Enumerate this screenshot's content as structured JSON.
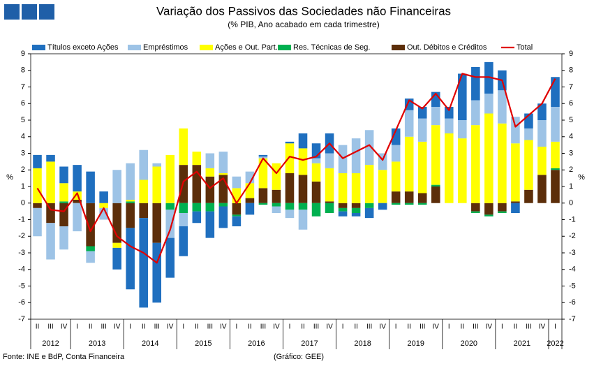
{
  "chart_data": {
    "type": "bar",
    "stacked": true,
    "title": "Variação dos Passivos das Sociedades não Financeiras",
    "subtitle": "(% PIB, Ano acabado em cada trimestre)",
    "ylabel": "%",
    "y2label": "%",
    "source": "Fonte: INE e BdP, Conta Financeira",
    "credit": "(Gráfico: GEE)",
    "categories": [
      "II",
      "III",
      "IV",
      "I",
      "II",
      "III",
      "IV",
      "I",
      "II",
      "III",
      "IV",
      "I",
      "II",
      "III",
      "IV",
      "I",
      "II",
      "III",
      "IV",
      "I",
      "II",
      "III",
      "IV",
      "I",
      "II",
      "III",
      "IV",
      "I",
      "II",
      "III",
      "IV",
      "I",
      "II",
      "III",
      "IV",
      "I",
      "II",
      "III",
      "IV",
      "I"
    ],
    "years": [
      "2012",
      "2013",
      "2014",
      "2015",
      "2016",
      "2017",
      "2018",
      "2019",
      "2020",
      "2021",
      "2022"
    ],
    "ylim": [
      -7,
      9
    ],
    "yticks": [
      -7,
      -6,
      -5,
      -4,
      -3,
      -2,
      -1,
      0,
      1,
      2,
      3,
      4,
      5,
      6,
      7,
      8,
      9
    ],
    "y2lim": [
      -7,
      9
    ],
    "y2ticks": [
      -7,
      -6,
      -5,
      -4,
      -3,
      -2,
      -1,
      0,
      1,
      2,
      3,
      4,
      5,
      6,
      7,
      8,
      9
    ],
    "grid": false,
    "legend": "top",
    "series": [
      {
        "name": "Títulos exceto Ações",
        "color": "#1f6fbf",
        "values": [
          0.8,
          0.4,
          1.0,
          1.6,
          1.9,
          0.7,
          -1.3,
          -3.7,
          -5.4,
          -3.6,
          -2.4,
          -1.8,
          -0.7,
          -1.6,
          -1.3,
          -0.6,
          -0.7,
          0.1,
          0,
          0.1,
          0.9,
          0.9,
          1.2,
          -0.3,
          -0.2,
          -0.6,
          -0.4,
          1.0,
          0.7,
          0.7,
          0.9,
          0.7,
          2.8,
          2.0,
          1.9,
          1.2,
          -0.6,
          0.9,
          1.0,
          1.8
        ]
      },
      {
        "name": "Empréstimos",
        "color": "#9dc3e6",
        "values": [
          -1.7,
          -2.2,
          -1.4,
          -1.7,
          -0.7,
          -0.7,
          2.0,
          2.2,
          1.8,
          0.2,
          -1.7,
          -0.8,
          0,
          0.9,
          1.3,
          0.7,
          0.7,
          0.1,
          -0.4,
          -0.5,
          -1.2,
          0.3,
          0.9,
          1.7,
          2.1,
          2.1,
          1.0,
          1.0,
          1.6,
          1.4,
          1.1,
          0.9,
          1.1,
          1.5,
          1.2,
          2.0,
          1.6,
          0.7,
          1.6,
          2.1
        ]
      },
      {
        "name": "Ações e Out. Part.",
        "color": "#ffff00",
        "values": [
          2.1,
          2.5,
          1.1,
          0.5,
          0,
          -0.3,
          -0.3,
          0.1,
          1.4,
          2.2,
          2.9,
          2.2,
          0.8,
          0.5,
          0.1,
          0.9,
          0.9,
          1.8,
          1.6,
          1.8,
          1.6,
          1.1,
          2.0,
          1.8,
          1.8,
          2.3,
          2.0,
          1.8,
          3.3,
          3.1,
          3.6,
          4.2,
          3.9,
          4.7,
          5.4,
          4.8,
          3.5,
          3.0,
          1.7,
          1.6
        ]
      },
      {
        "name": "Res. Técnicas de Seg.",
        "color": "#00b050",
        "values": [
          0,
          0,
          0.1,
          0,
          -0.3,
          0,
          0,
          0.1,
          0,
          0,
          -0.4,
          -0.6,
          -0.5,
          -0.5,
          -0.2,
          -0.1,
          0,
          -0.1,
          -0.2,
          -0.4,
          -0.4,
          -0.8,
          -0.6,
          -0.2,
          -0.3,
          -0.3,
          0,
          -0.1,
          -0.1,
          -0.1,
          0.1,
          0,
          0,
          -0.1,
          -0.1,
          -0.1,
          0,
          0,
          0,
          0.1
        ]
      },
      {
        "name": "Out. Débitos e Créditos",
        "color": "#5c2e0a",
        "values": [
          -0.3,
          -1.2,
          -1.4,
          0.2,
          -2.6,
          0,
          -2.4,
          -1.5,
          -0.9,
          -2.4,
          0,
          2.3,
          2.3,
          1.6,
          1.7,
          -0.7,
          0.3,
          0.9,
          0.8,
          1.8,
          1.7,
          1.3,
          0.1,
          -0.3,
          -0.3,
          0,
          0,
          0.7,
          0.7,
          0.6,
          1.0,
          0,
          0,
          -0.5,
          -0.7,
          -0.5,
          0.1,
          0.8,
          1.7,
          2.0
        ]
      },
      {
        "name": "Total",
        "type": "line",
        "color": "#e00000",
        "values": [
          0.9,
          -0.4,
          -0.5,
          0.6,
          -1.7,
          -0.3,
          -2.0,
          -2.6,
          -3.0,
          -3.6,
          -1.6,
          1.3,
          1.9,
          0.9,
          1.5,
          0.0,
          1.2,
          2.7,
          1.8,
          2.8,
          2.6,
          2.8,
          3.6,
          2.7,
          3.1,
          3.5,
          2.6,
          4.4,
          6.2,
          5.7,
          6.6,
          5.6,
          7.8,
          7.6,
          7.6,
          7.4,
          4.6,
          5.3,
          6.0,
          7.5
        ]
      }
    ]
  }
}
